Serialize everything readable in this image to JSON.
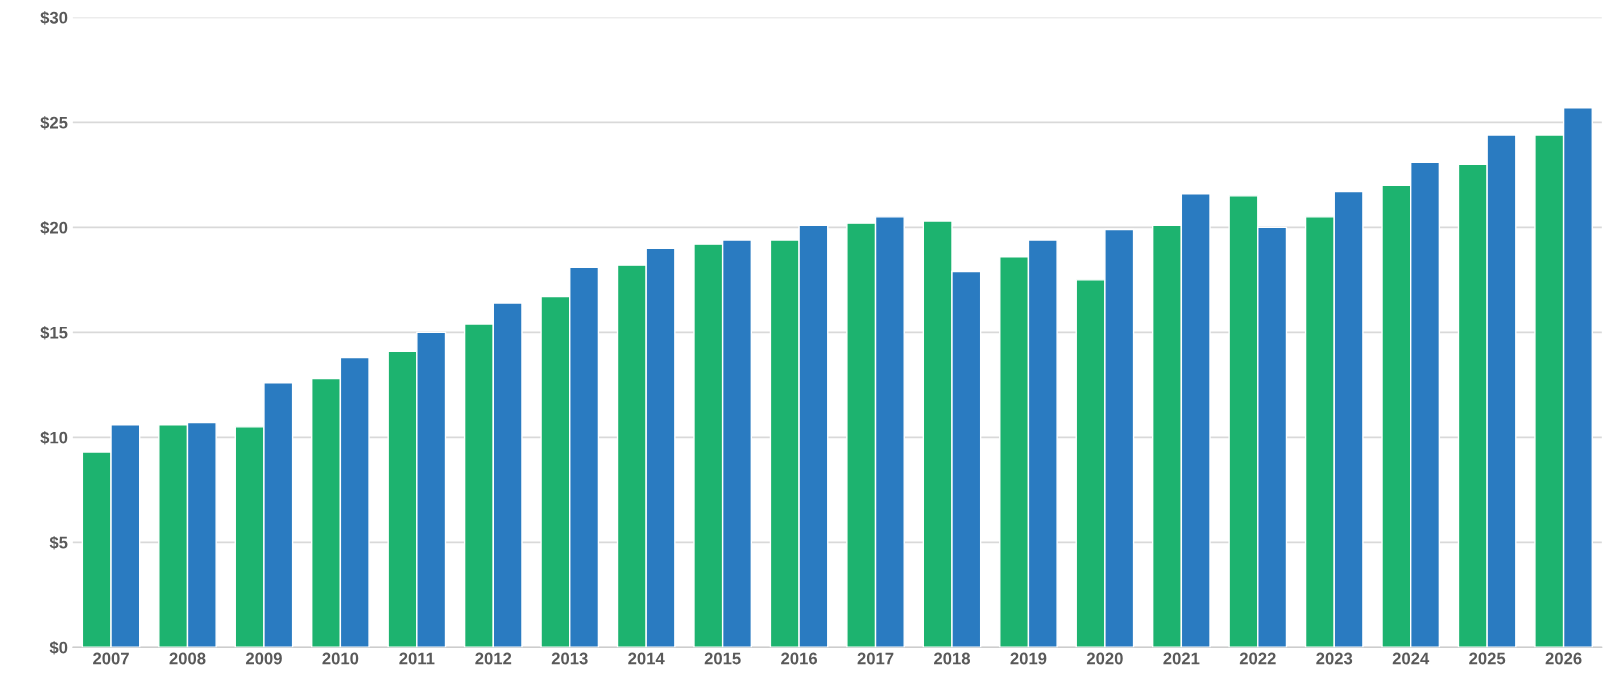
{
  "chart_data": {
    "type": "bar",
    "categories": [
      "2007",
      "2008",
      "2009",
      "2010",
      "2011",
      "2012",
      "2013",
      "2014",
      "2015",
      "2016",
      "2017",
      "2018",
      "2019",
      "2020",
      "2021",
      "2022",
      "2023",
      "2024",
      "2025",
      "2026"
    ],
    "series": [
      {
        "color": "#1db36f",
        "values": [
          9.3,
          10.6,
          10.5,
          12.8,
          14.1,
          15.4,
          16.7,
          18.2,
          19.2,
          19.4,
          20.2,
          20.3,
          18.6,
          17.5,
          20.1,
          21.5,
          20.5,
          22.0,
          23.0,
          24.4
        ]
      },
      {
        "color": "#2a7bc1",
        "values": [
          10.6,
          10.7,
          12.6,
          13.8,
          15.0,
          16.4,
          18.1,
          19.0,
          19.4,
          20.1,
          20.5,
          17.9,
          19.4,
          19.9,
          21.6,
          20.0,
          21.7,
          23.1,
          24.4,
          25.7
        ]
      }
    ],
    "ylim": [
      0,
      30
    ],
    "yticks": [
      {
        "value": 0,
        "label": "$0"
      },
      {
        "value": 5,
        "label": "$5"
      },
      {
        "value": 10,
        "label": "$10"
      },
      {
        "value": 15,
        "label": "$15"
      },
      {
        "value": 20,
        "label": "$20"
      },
      {
        "value": 25,
        "label": "$25"
      },
      {
        "value": 30,
        "label": "$30"
      }
    ],
    "grid": "y"
  }
}
